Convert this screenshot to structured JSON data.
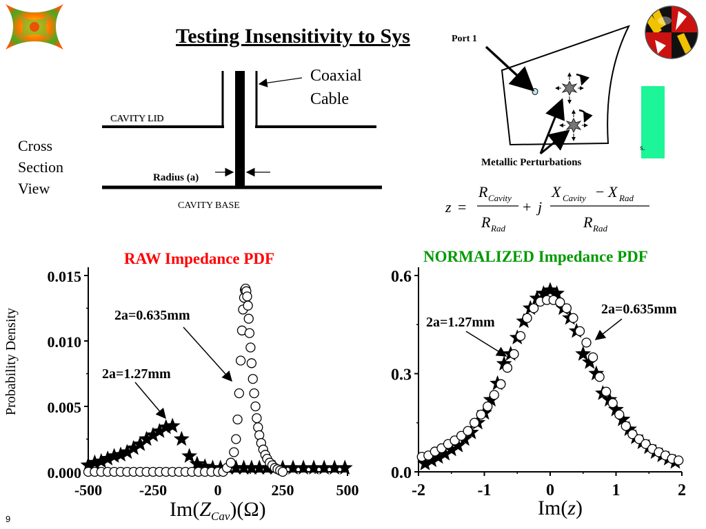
{
  "slide": {
    "title": "Testing Insensitivity to Sys",
    "page_number": "9",
    "cross_section_label": [
      "Cross",
      "Section",
      "View"
    ],
    "lid_label": "CAVITY LID",
    "base_label": "CAVITY BASE",
    "radius_label": "Radius (a)",
    "coax_label": [
      "Coaxial",
      "Cable"
    ],
    "port_label": "Port 1",
    "perturbation_label": "Metallic Perturbations",
    "hidden_text_fragment": "s.",
    "green_box_color": "#1cf598"
  },
  "formula": {
    "z": "z",
    "equals": "=",
    "R": "R",
    "X": "X",
    "cavity_sub": "Cavity",
    "rad_sub": "Rad",
    "plus": "+",
    "j": "j",
    "minus": "−"
  },
  "chart_data": [
    {
      "type": "scatter",
      "title": "RAW Impedance PDF",
      "title_color": "#ff0000",
      "ylabel": "Probability Density",
      "xlabel": "Im(Z_Cav)(Ω)",
      "xlabel_parts": {
        "pre": "Im(",
        "var": "Z",
        "sub": "Cav",
        "post": ")(Ω)"
      },
      "xlim": [
        -500,
        500
      ],
      "ylim": [
        0,
        0.015
      ],
      "xticks": [
        "-500",
        "-250",
        "0",
        "250",
        "500"
      ],
      "yticks": [
        "0.000",
        "0.005",
        "0.010",
        "0.015"
      ],
      "annotations": [
        "2a=0.635mm",
        "2a=1.27mm"
      ],
      "series": [
        {
          "name": "2a=0.635mm",
          "marker": "circle",
          "x": [
            -500,
            -475,
            -450,
            -425,
            -400,
            -375,
            -350,
            -325,
            -300,
            -275,
            -250,
            -225,
            -200,
            -175,
            -150,
            -125,
            -100,
            -75,
            -50,
            -25,
            0,
            20,
            35,
            50,
            62,
            70,
            76,
            82,
            88,
            93,
            97,
            101,
            104,
            107,
            110,
            113,
            116,
            119,
            122,
            126,
            130,
            135,
            140,
            145,
            150,
            155,
            160,
            167,
            175,
            183,
            190,
            200,
            210,
            220,
            230,
            240,
            250
          ],
          "y": [
            0,
            0,
            0,
            0,
            0,
            0,
            0,
            0,
            0,
            0,
            0,
            0,
            0,
            0,
            0,
            0,
            0,
            0,
            0,
            0,
            0,
            0,
            0.0003,
            0.0007,
            0.0015,
            0.0025,
            0.004,
            0.006,
            0.0085,
            0.0108,
            0.0124,
            0.0133,
            0.0139,
            0.014,
            0.0138,
            0.0134,
            0.0127,
            0.0117,
            0.0106,
            0.0095,
            0.0083,
            0.0071,
            0.006,
            0.005,
            0.0041,
            0.0034,
            0.0028,
            0.0022,
            0.0017,
            0.0013,
            0.001,
            0.0007,
            0.0005,
            0.0003,
            0.0002,
            0.0001,
            0
          ]
        },
        {
          "name": "2a=1.27mm",
          "marker": "star",
          "x": [
            -500,
            -475,
            -450,
            -425,
            -400,
            -375,
            -350,
            -325,
            -300,
            -275,
            -250,
            -225,
            -200,
            -175,
            -140,
            -110,
            -80,
            -50,
            -20,
            10,
            40,
            70,
            100,
            130,
            160,
            190,
            220,
            250,
            290,
            330,
            370,
            410,
            450,
            490
          ],
          "y": [
            0.0005,
            0.0007,
            0.0008,
            0.001,
            0.0012,
            0.0013,
            0.0015,
            0.0018,
            0.0021,
            0.0025,
            0.0028,
            0.0031,
            0.0034,
            0.0035,
            0.0025,
            0.0012,
            0.0006,
            0.0004,
            0.0003,
            0.0003,
            0.0003,
            0.0003,
            0.0003,
            0.0003,
            0.0003,
            0.0003,
            0.0003,
            0.0003,
            0.0003,
            0.0003,
            0.0003,
            0.0003,
            0.0003,
            0.0003
          ]
        }
      ]
    },
    {
      "type": "scatter",
      "title": "NORMALIZED Impedance PDF",
      "title_color": "#009900",
      "ylabel": "",
      "xlabel": "Im(z)",
      "xlabel_parts": {
        "pre": "Im(",
        "var": "z",
        "sub": "",
        "post": ")"
      },
      "xlim": [
        -2,
        2
      ],
      "ylim": [
        0,
        0.6
      ],
      "xticks": [
        "-2",
        "-1",
        "0",
        "1",
        "2"
      ],
      "yticks": [
        "0.0",
        "0.3",
        "0.6"
      ],
      "annotations": [
        "2a=1.27mm",
        "2a=0.635mm"
      ],
      "series": [
        {
          "name": "2a=0.635mm",
          "marker": "circle",
          "x": [
            -1.95,
            -1.85,
            -1.75,
            -1.65,
            -1.55,
            -1.45,
            -1.35,
            -1.25,
            -1.15,
            -1.05,
            -0.95,
            -0.85,
            -0.75,
            -0.65,
            -0.55,
            -0.45,
            -0.35,
            -0.25,
            -0.15,
            -0.05,
            0.05,
            0.15,
            0.25,
            0.35,
            0.45,
            0.55,
            0.65,
            0.75,
            0.85,
            0.95,
            1.05,
            1.15,
            1.25,
            1.35,
            1.45,
            1.55,
            1.65,
            1.75,
            1.85,
            1.95
          ],
          "y": [
            0.046,
            0.05,
            0.062,
            0.072,
            0.085,
            0.096,
            0.11,
            0.125,
            0.15,
            0.175,
            0.2,
            0.235,
            0.268,
            0.318,
            0.36,
            0.415,
            0.47,
            0.5,
            0.52,
            0.525,
            0.525,
            0.518,
            0.5,
            0.47,
            0.43,
            0.395,
            0.35,
            0.29,
            0.245,
            0.21,
            0.175,
            0.14,
            0.115,
            0.1,
            0.085,
            0.07,
            0.06,
            0.05,
            0.04,
            0.035
          ]
        },
        {
          "name": "2a=1.27mm",
          "marker": "star",
          "x": [
            -1.9,
            -1.8,
            -1.7,
            -1.6,
            -1.5,
            -1.4,
            -1.3,
            -1.2,
            -1.1,
            -1.0,
            -0.9,
            -0.8,
            -0.7,
            -0.6,
            -0.5,
            -0.4,
            -0.3,
            -0.2,
            -0.1,
            0.0,
            0.1,
            0.2,
            0.3,
            0.4,
            0.5,
            0.6,
            0.7,
            0.8,
            0.9,
            1.0,
            1.1,
            1.2,
            1.3,
            1.4,
            1.5,
            1.6,
            1.7,
            1.8,
            1.9
          ],
          "y": [
            0.025,
            0.035,
            0.045,
            0.055,
            0.068,
            0.08,
            0.1,
            0.12,
            0.15,
            0.18,
            0.22,
            0.27,
            0.33,
            0.36,
            0.41,
            0.46,
            0.5,
            0.53,
            0.545,
            0.555,
            0.545,
            0.5,
            0.47,
            0.43,
            0.36,
            0.335,
            0.3,
            0.24,
            0.22,
            0.19,
            0.16,
            0.13,
            0.105,
            0.09,
            0.075,
            0.06,
            0.05,
            0.04,
            0.03
          ]
        }
      ]
    }
  ]
}
